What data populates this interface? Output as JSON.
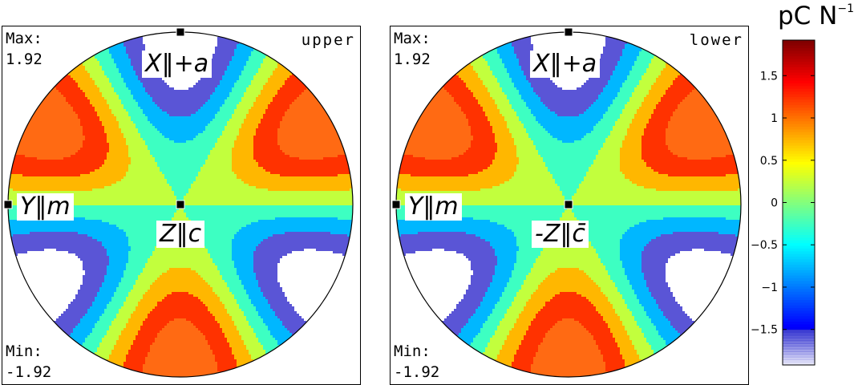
{
  "panels": [
    {
      "id": "upper",
      "max_label": "Max:",
      "max_value": "1.92",
      "min_label": "Min:",
      "min_value": "-1.92",
      "hemisphere": "upper",
      "top_label": {
        "sym": "X",
        "rel": "‖",
        "rhs": "+a"
      },
      "left_label": {
        "sym": "Y",
        "rel": "‖",
        "rhs": "m"
      },
      "center_label": {
        "sym": "Z",
        "rel": "‖",
        "rhs": "c"
      }
    },
    {
      "id": "lower",
      "max_label": "Max:",
      "max_value": "1.92",
      "min_label": "Min:",
      "min_value": "-1.92",
      "hemisphere": "lower",
      "top_label": {
        "sym": "X",
        "rel": "‖",
        "rhs": "+a"
      },
      "left_label": {
        "sym": "Y",
        "rel": "‖",
        "rhs": "m"
      },
      "center_label": {
        "sym": "-Z",
        "rel": "‖",
        "rhs": "c̄"
      }
    }
  ],
  "colorbar": {
    "title": "pC N",
    "title_exponent": "−1",
    "ticks": [
      "1.5",
      "1",
      "0.5",
      "0",
      "−0.5",
      "−1",
      "−1.5"
    ]
  },
  "chart_data": {
    "type": "heatmap",
    "description_type": "stereographic contour plot",
    "value_range": [
      -1.92,
      1.92
    ],
    "colorbar_range": [
      -1.92,
      1.92
    ],
    "tick_values": [
      1.5,
      1,
      0.5,
      0,
      -0.5,
      -1,
      -1.5
    ],
    "contour_levels": [
      -1.5,
      -1.0,
      -0.5,
      0,
      0.5,
      1.0,
      1.5
    ],
    "symmetry": "six-fold, sin(3φ) azimuthal",
    "max": 1.92,
    "min": -1.92,
    "panels": [
      "upper",
      "lower"
    ]
  }
}
